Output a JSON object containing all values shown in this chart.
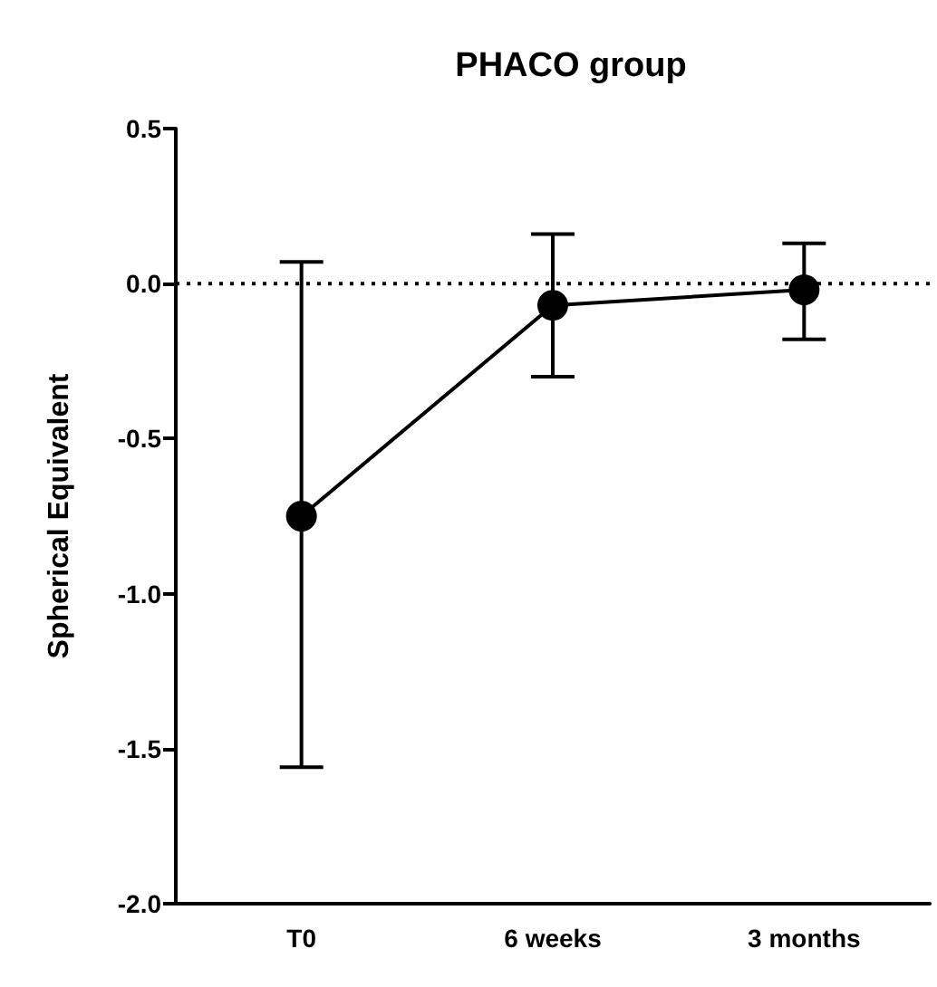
{
  "chart_data": {
    "type": "line",
    "title": "PHACO group",
    "ylabel": "Spherical Equivalent",
    "categories": [
      "T0",
      "6 weeks",
      "3 months"
    ],
    "series": [
      {
        "color": "#000000",
        "values": [
          -0.75,
          -0.07,
          -0.02
        ],
        "errors": [
          [
            -1.56,
            0.07
          ],
          [
            -0.3,
            0.16
          ],
          [
            -0.18,
            0.13
          ]
        ]
      }
    ],
    "ylim": [
      -2.0,
      0.5
    ],
    "yticks": [
      {
        "value": -2,
        "label": "-2.0"
      },
      {
        "value": -1.5,
        "label": "-1.5"
      },
      {
        "value": -1,
        "label": "-1.0"
      },
      {
        "value": -0.5,
        "label": "-0.5"
      },
      {
        "value": 0,
        "label": "0.0"
      },
      {
        "value": 0.5,
        "label": "0.5"
      }
    ],
    "ref_lines": [
      {
        "axis": "y",
        "value": 0,
        "line_style": "dotted",
        "color": "#000000"
      }
    ],
    "marker": "circle",
    "line_style": "solid"
  }
}
